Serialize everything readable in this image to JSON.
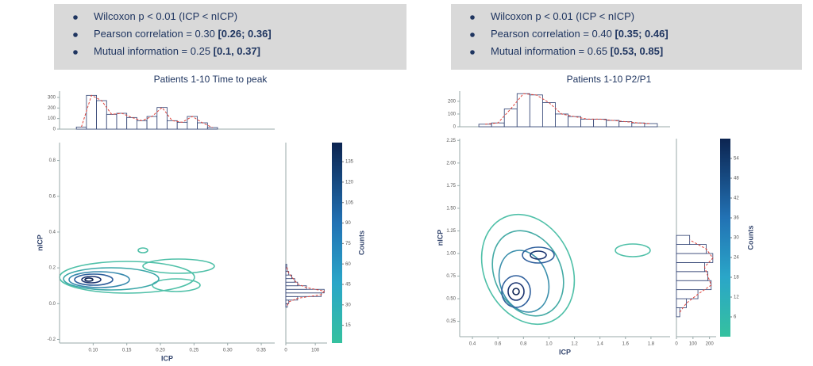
{
  "chart_data": [
    {
      "type": "jointplot",
      "title": "Patients 1-10 Time to peak",
      "stats": [
        {
          "text": "Wilcoxon p < 0.01 (ICP < nICP)"
        },
        {
          "text": "Pearson correlation = 0.30 ",
          "bold": "[0.26; 0.36]"
        },
        {
          "text": "Mutual information = 0.25 ",
          "bold": "[0.1, 0.37]"
        }
      ],
      "xlabel": "ICP",
      "ylabel": "nICP",
      "xlim": [
        0.05,
        0.37
      ],
      "xticks": [
        {
          "value": 0.1,
          "label": "0.10"
        },
        0.15,
        {
          "value": 0.2,
          "label": "0.20"
        },
        0.25,
        {
          "value": 0.3,
          "label": "0.30"
        },
        0.35
      ],
      "ylim": [
        -0.22,
        0.9
      ],
      "yticks": [
        -0.2,
        {
          "value": 0,
          "label": "0.0"
        },
        0.2,
        0.4,
        0.6,
        0.8
      ],
      "top_hist": {
        "bins": [
          0.075,
          0.09,
          0.105,
          0.12,
          0.135,
          0.15,
          0.165,
          0.18,
          0.195,
          0.21,
          0.225,
          0.24,
          0.255,
          0.27,
          0.285
        ],
        "counts": [
          20,
          320,
          270,
          140,
          150,
          110,
          80,
          120,
          205,
          80,
          65,
          120,
          60,
          15
        ],
        "ylim": [
          0,
          360
        ],
        "yticks": [
          0,
          100,
          200,
          300
        ]
      },
      "side_hist": {
        "bins": [
          -0.02,
          0,
          0.02,
          0.04,
          0.06,
          0.08,
          0.1,
          0.12,
          0.14,
          0.16,
          0.18,
          0.2,
          0.22
        ],
        "counts": [
          5,
          10,
          40,
          120,
          130,
          70,
          40,
          30,
          20,
          10,
          5,
          3
        ],
        "xlim": [
          0,
          140
        ],
        "xticks": [
          0,
          100
        ]
      },
      "colorbar": {
        "label": "Counts",
        "clim": [
          2,
          149
        ],
        "ticks": [
          15,
          30,
          45,
          60,
          75,
          90,
          105,
          120,
          135
        ]
      }
    },
    {
      "type": "jointplot",
      "title": "Patients 1-10 P2/P1",
      "stats": [
        {
          "text": "Wilcoxon p < 0.01 (ICP < nICP)"
        },
        {
          "text": "Pearson correlation = 0.40 ",
          "bold": "[0.35; 0.46]"
        },
        {
          "text": "Mutual information = 0.65 ",
          "bold": "[0.53, 0.85]"
        }
      ],
      "xlabel": "ICP",
      "ylabel": "nICP",
      "xlim": [
        0.3,
        1.95
      ],
      "xticks": [
        0.4,
        0.6,
        0.8,
        {
          "value": 1,
          "label": "1.0"
        },
        1.2,
        1.4,
        1.6,
        1.8
      ],
      "ylim": [
        0.08,
        2.27
      ],
      "yticks": [
        0.25,
        {
          "value": 0.5,
          "label": "0.50"
        },
        0.75,
        {
          "value": 1,
          "label": "1.00"
        },
        1.25,
        {
          "value": 1.5,
          "label": "1.50"
        },
        1.75,
        {
          "value": 2,
          "label": "2.00"
        },
        2.25
      ],
      "top_hist": {
        "bins": [
          0.45,
          0.55,
          0.65,
          0.75,
          0.85,
          0.95,
          1.05,
          1.15,
          1.25,
          1.35,
          1.45,
          1.55,
          1.65,
          1.75,
          1.85
        ],
        "counts": [
          20,
          30,
          140,
          260,
          250,
          190,
          100,
          80,
          60,
          60,
          50,
          40,
          30,
          25
        ],
        "ylim": [
          0,
          280
        ],
        "yticks": [
          0,
          100,
          200
        ]
      },
      "side_hist": {
        "bins": [
          0.3,
          0.4,
          0.5,
          0.6,
          0.7,
          0.8,
          0.9,
          1,
          1.1,
          1.2
        ],
        "counts": [
          20,
          60,
          130,
          210,
          190,
          170,
          220,
          180,
          80
        ],
        "xlim": [
          0,
          240
        ],
        "xticks": [
          0,
          100,
          200
        ]
      },
      "colorbar": {
        "label": "Counts",
        "clim": [
          0,
          60
        ],
        "ticks": [
          6,
          12,
          18,
          24,
          30,
          36,
          42,
          48,
          54
        ]
      }
    }
  ]
}
